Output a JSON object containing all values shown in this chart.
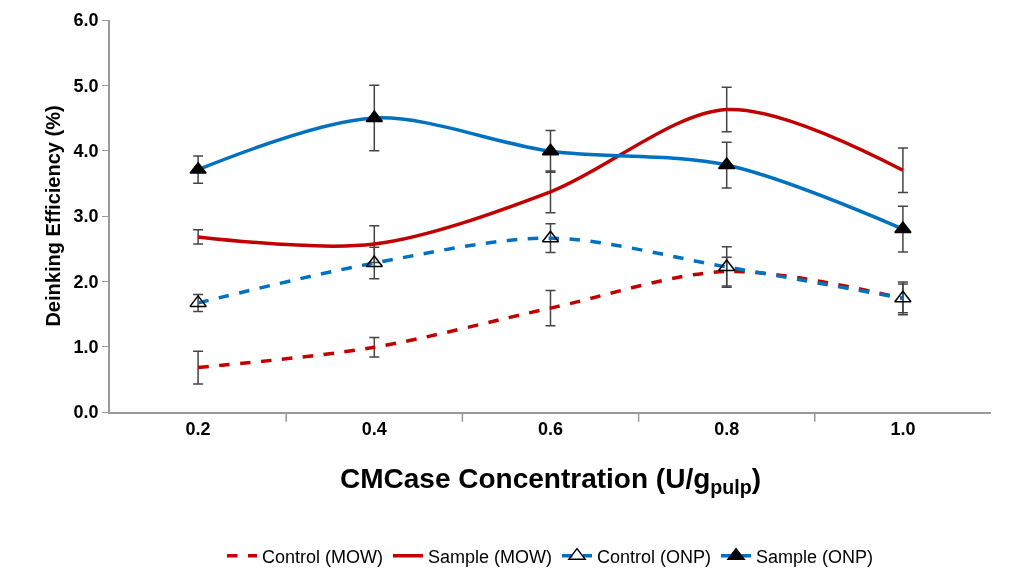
{
  "chart_data": {
    "type": "line",
    "xlabel": "CMCase Concentration (U/g$_{pulp}$)",
    "ylabel": "Deinking Efficiency (%)",
    "categories": [
      "0.2",
      "0.4",
      "0.6",
      "0.8",
      "1.0"
    ],
    "series": [
      {
        "name": "Control (MOW)",
        "color": "#c00000",
        "line_style": "dashed",
        "marker": "none",
        "values": [
          0.68,
          0.99,
          1.59,
          2.15,
          1.74
        ],
        "errors": [
          0.25,
          0.15,
          0.27,
          0.22,
          0.22
        ]
      },
      {
        "name": "Sample (MOW)",
        "color": "#c00000",
        "line_style": "solid",
        "marker": "none",
        "values": [
          2.68,
          2.57,
          3.37,
          4.63,
          3.7
        ],
        "errors": [
          0.11,
          0.28,
          0.32,
          0.34,
          0.34
        ]
      },
      {
        "name": "Control (ONP)",
        "color": "#0070c0",
        "line_style": "dashed",
        "marker": "triangle",
        "values": [
          1.67,
          2.28,
          2.66,
          2.22,
          1.74
        ],
        "errors": [
          0.13,
          0.24,
          0.22,
          0.31,
          0.25
        ]
      },
      {
        "name": "Sample (ONP)",
        "color": "#0070c0",
        "line_style": "solid",
        "marker": "triangle",
        "values": [
          3.71,
          4.5,
          3.99,
          3.78,
          2.8
        ],
        "errors": [
          0.21,
          0.5,
          0.32,
          0.35,
          0.35
        ]
      }
    ],
    "ylim": [
      0,
      6
    ],
    "yticks": [
      {
        "value": 0,
        "label": "0.0"
      },
      {
        "value": 1,
        "label": "1.0"
      },
      {
        "value": 2,
        "label": "2.0"
      },
      {
        "value": 3,
        "label": "3.0"
      },
      {
        "value": 4,
        "label": "4.0"
      },
      {
        "value": 5,
        "label": "5.0"
      },
      {
        "value": 6,
        "label": "6.0"
      }
    ],
    "grid": false,
    "legend": "bottom"
  }
}
